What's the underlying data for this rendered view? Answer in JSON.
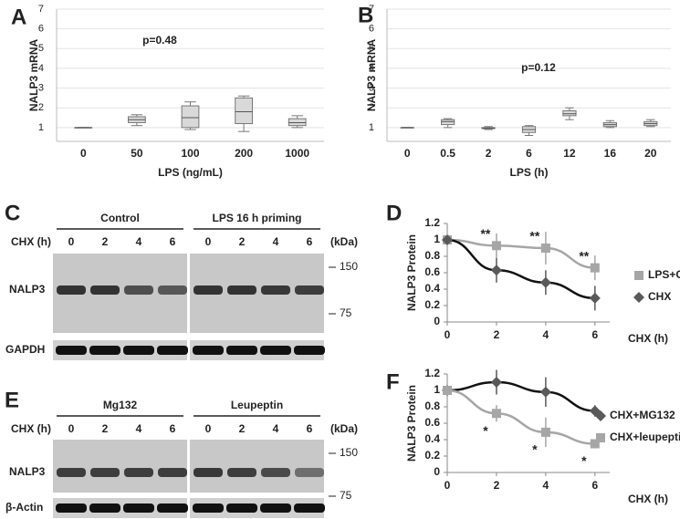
{
  "chart_data": [
    {
      "type": "box",
      "panel": "A",
      "annotation": "p=0.48",
      "x_label": "LPS (ng/mL)",
      "y_label": "NALP3 mRNA",
      "categories": [
        0,
        50,
        100,
        200,
        1000
      ],
      "min": [
        1,
        1.1,
        0.9,
        0.8,
        1.0
      ],
      "q1": [
        1,
        1.25,
        1.0,
        1.2,
        1.1
      ],
      "median": [
        1,
        1.4,
        1.5,
        1.8,
        1.25
      ],
      "q3": [
        1,
        1.55,
        2.1,
        2.5,
        1.45
      ],
      "max": [
        1,
        1.65,
        2.3,
        2.6,
        1.6
      ],
      "color": "#d9d9d9",
      "ylim": [
        0.3,
        7
      ],
      "yticks": [
        1,
        2,
        3,
        4,
        5,
        6,
        7
      ],
      "grid": true
    },
    {
      "type": "box",
      "panel": "B",
      "annotation": "p=0.12",
      "x_label": "LPS (h)",
      "y_label": "NALP3 mRNA",
      "categories": [
        0,
        0.5,
        2,
        6,
        12,
        16,
        20
      ],
      "min": [
        1,
        1.0,
        0.9,
        0.6,
        1.4,
        1.0,
        1.05
      ],
      "q1": [
        1,
        1.15,
        0.95,
        0.75,
        1.6,
        1.05,
        1.1
      ],
      "median": [
        1,
        1.3,
        0.97,
        0.9,
        1.7,
        1.15,
        1.2
      ],
      "q3": [
        1,
        1.4,
        1.0,
        1.05,
        1.85,
        1.25,
        1.3
      ],
      "max": [
        1,
        1.45,
        1.05,
        1.1,
        2.0,
        1.35,
        1.4
      ],
      "color": "#d9d9d9",
      "ylim": [
        0.3,
        7
      ],
      "yticks": [
        1,
        2,
        3,
        4,
        5,
        6,
        7
      ],
      "grid": true
    },
    {
      "type": "line",
      "panel": "D",
      "x_label": "CHX (h)",
      "y_label": "NALP3 Protein",
      "x": [
        0,
        2,
        4,
        6
      ],
      "series": [
        {
          "name": "LPS+CHX",
          "color": "#a6a6a6",
          "marker": "square",
          "values": [
            1,
            0.93,
            0.9,
            0.66
          ],
          "errors": [
            0,
            0.15,
            0.2,
            0.15
          ]
        },
        {
          "name": "CHX",
          "color": "#595959",
          "marker": "diamond",
          "values": [
            1,
            0.63,
            0.48,
            0.29
          ],
          "errors": [
            0,
            0.15,
            0.15,
            0.15
          ]
        }
      ],
      "significance": [
        {
          "x": 2,
          "text": "**"
        },
        {
          "x": 4,
          "text": "**"
        },
        {
          "x": 6,
          "text": "**"
        }
      ],
      "xlim": [
        0,
        6.6
      ],
      "xticks": [
        0,
        2,
        4,
        6
      ],
      "ylim": [
        0,
        1.2
      ],
      "yticks": [
        0,
        0.2,
        0.4,
        0.6,
        0.8,
        1,
        1.2
      ]
    },
    {
      "type": "line",
      "panel": "F",
      "x_label": "CHX (h)",
      "y_label": "NALP3 Protein",
      "x": [
        0,
        2,
        4,
        6
      ],
      "series": [
        {
          "name": "CHX+MG132",
          "color": "#595959",
          "marker": "diamond",
          "values": [
            1,
            1.1,
            0.98,
            0.75
          ],
          "errors": [
            0,
            0.15,
            0.18,
            0.07
          ]
        },
        {
          "name": "CHX+leupeptin",
          "color": "#a6a6a6",
          "marker": "square",
          "values": [
            1,
            0.72,
            0.49,
            0.35
          ],
          "errors": [
            0,
            0.1,
            0.18,
            0.05
          ]
        }
      ],
      "significance": [
        {
          "x": 2,
          "text": "*"
        },
        {
          "x": 4,
          "text": "*"
        },
        {
          "x": 6,
          "text": "*"
        }
      ],
      "xlim": [
        0,
        6.6
      ],
      "xticks": [
        0,
        2,
        4,
        6
      ],
      "ylim": [
        0,
        1.2
      ],
      "yticks": [
        0,
        0.2,
        0.4,
        0.6,
        0.8,
        1,
        1.2
      ]
    }
  ],
  "blots": [
    {
      "panel": "C",
      "groups": [
        "Control",
        "LPS 16 h priming"
      ],
      "lane_axis": "CHX (h)",
      "lanes": [
        0,
        2,
        4,
        6
      ],
      "unit": "(kDa)",
      "markers": [
        150,
        75
      ],
      "rows": [
        "NALP3",
        "GAPDH"
      ]
    },
    {
      "panel": "E",
      "groups": [
        "Mg132",
        "Leupeptin"
      ],
      "lane_axis": "CHX (h)",
      "lanes": [
        0,
        2,
        4,
        6
      ],
      "unit": "(kDa)",
      "markers": [
        150,
        75
      ],
      "rows": [
        "NALP3",
        "β-Actin"
      ]
    }
  ]
}
